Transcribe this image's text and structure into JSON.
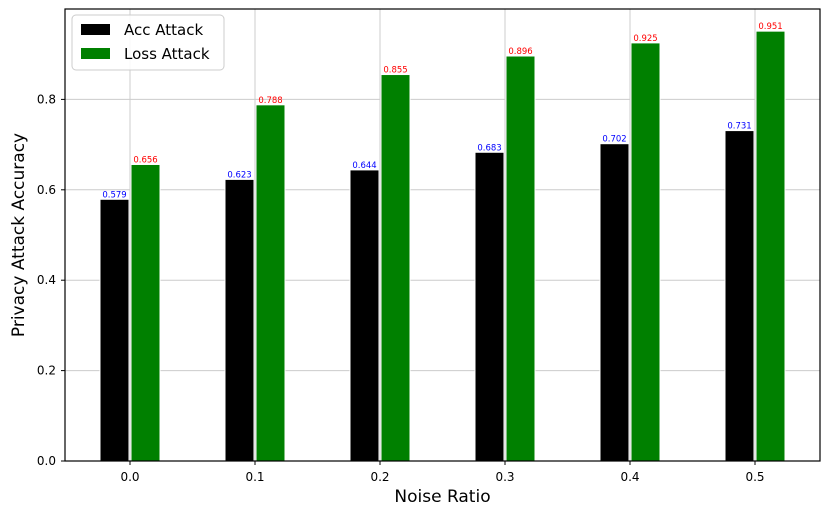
{
  "chart_data": {
    "type": "bar",
    "categories": [
      "0.0",
      "0.1",
      "0.2",
      "0.3",
      "0.4",
      "0.5"
    ],
    "series": [
      {
        "name": "Acc Attack",
        "color": "#000000",
        "label_color": "#0000ff",
        "values": [
          0.579,
          0.623,
          0.644,
          0.683,
          0.702,
          0.731
        ],
        "value_labels": [
          "0.579",
          "0.623",
          "0.644",
          "0.683",
          "0.702",
          "0.731"
        ]
      },
      {
        "name": "Loss Attack",
        "color": "#008000",
        "label_color": "#ff0000",
        "values": [
          0.656,
          0.788,
          0.855,
          0.896,
          0.925,
          0.951
        ],
        "value_labels": [
          "0.656",
          "0.788",
          "0.855",
          "0.896",
          "0.925",
          "0.951"
        ]
      }
    ],
    "xlabel": "Noise Ratio",
    "ylabel": "Privacy Attack Accuracy",
    "ylim": [
      0,
      1.0
    ],
    "yticks": [
      0.0,
      0.2,
      0.4,
      0.6,
      0.8
    ],
    "ytick_labels": [
      "0.0",
      "0.2",
      "0.4",
      "0.6",
      "0.8"
    ],
    "grid": true,
    "legend_position": "top-left"
  }
}
